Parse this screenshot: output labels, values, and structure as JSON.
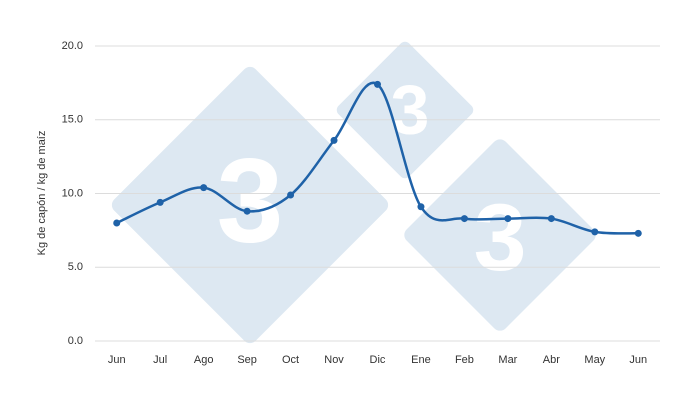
{
  "chart_data": {
    "type": "line",
    "y_label": "Kg de capón / kg de maíz",
    "categories": [
      "Jun",
      "Jul",
      "Ago",
      "Sep",
      "Oct",
      "Nov",
      "Dic",
      "Ene",
      "Feb",
      "Mar",
      "Abr",
      "May",
      "Jun"
    ],
    "series": [
      {
        "color": "#1f62a8",
        "values": [
          8.0,
          9.4,
          10.4,
          8.8,
          9.9,
          13.6,
          17.4,
          9.1,
          8.3,
          8.3,
          8.3,
          7.4,
          7.3
        ]
      }
    ],
    "ylim": [
      0,
      20
    ],
    "yticks": [
      {
        "value": 0,
        "label": "0.0"
      },
      {
        "value": 5,
        "label": "5.0"
      },
      {
        "value": 10,
        "label": "10.0"
      },
      {
        "value": 15,
        "label": "15.0"
      },
      {
        "value": 20,
        "label": "20.0"
      }
    ],
    "grid": true,
    "smooth": true
  }
}
